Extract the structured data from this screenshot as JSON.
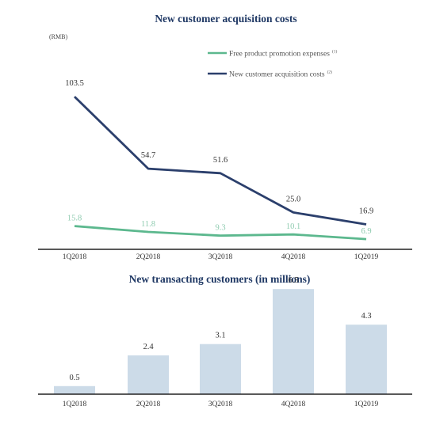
{
  "chart_data": [
    {
      "type": "line",
      "title": "New customer acquisition costs",
      "unit_label": "(RMB)",
      "categories": [
        "1Q2018",
        "2Q2018",
        "3Q2018",
        "4Q2018",
        "1Q2019"
      ],
      "ylim": [
        0,
        110
      ],
      "grid": false,
      "legend_position": "top-right",
      "series": [
        {
          "name": "Free product promotion expenses",
          "footnote": "(1)",
          "color": "#5cb88e",
          "label_color": "#8fcbb0",
          "values": [
            15.8,
            11.8,
            9.3,
            10.1,
            6.9
          ]
        },
        {
          "name": "New customer acquisition costs",
          "footnote": "(2)",
          "color": "#2b3f6c",
          "label_color": "#333333",
          "values": [
            103.5,
            54.7,
            51.6,
            25.0,
            16.9
          ]
        }
      ]
    },
    {
      "type": "bar",
      "title": "New transacting customers (in millions)",
      "categories": [
        "1Q2018",
        "2Q2018",
        "3Q2018",
        "4Q2018",
        "1Q2019"
      ],
      "values": [
        0.5,
        2.4,
        3.1,
        6.5,
        4.3
      ],
      "ylim": [
        0,
        7
      ],
      "grid": false,
      "color": "#ccdbe8"
    }
  ]
}
